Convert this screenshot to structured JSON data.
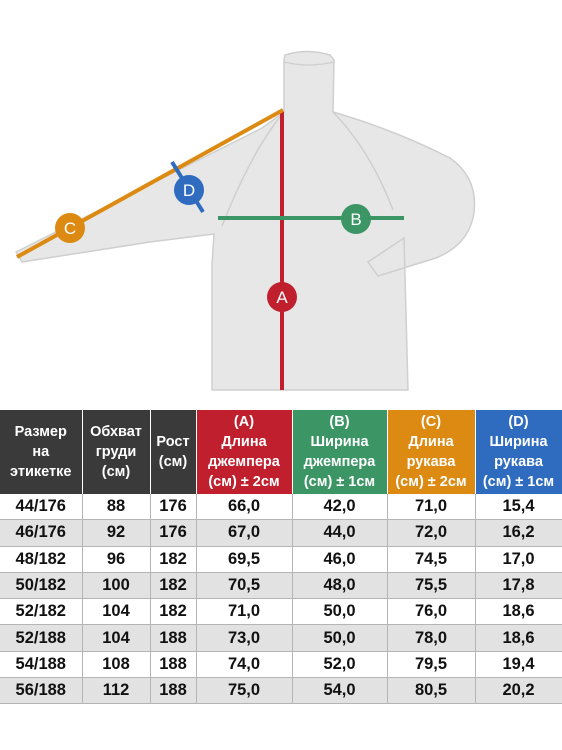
{
  "diagram": {
    "markers": {
      "a": "A",
      "b": "B",
      "c": "C",
      "d": "D"
    },
    "colors": {
      "a": "#c0202e",
      "b": "#3b9564",
      "c": "#dc8a12",
      "d": "#2f6cc0",
      "garment": "#e7e7e7",
      "garment_outline": "#cfcfcf"
    }
  },
  "table": {
    "headers": [
      {
        "lines": [
          "Размер",
          "на",
          "этикетке"
        ],
        "color": "#3a3a3a"
      },
      {
        "lines": [
          "Обхват",
          "груди",
          "(см)"
        ],
        "color": "#3a3a3a"
      },
      {
        "lines": [
          "Рост",
          "(см)"
        ],
        "color": "#3a3a3a"
      },
      {
        "lines": [
          "(A)",
          "Длина",
          "джемпера",
          "(см) ± 2см"
        ],
        "color": "#c0202e"
      },
      {
        "lines": [
          "(B)",
          "Ширина",
          "джемпера",
          "(см) ± 1см"
        ],
        "color": "#3b9564"
      },
      {
        "lines": [
          "(C)",
          "Длина",
          "рукава",
          "(см) ± 2см"
        ],
        "color": "#dc8a12"
      },
      {
        "lines": [
          "(D)",
          "Ширина",
          "рукава",
          "(см) ± 1см"
        ],
        "color": "#2f6cc0"
      }
    ],
    "rows": [
      [
        "44/176",
        "88",
        "176",
        "66,0",
        "42,0",
        "71,0",
        "15,4"
      ],
      [
        "46/176",
        "92",
        "176",
        "67,0",
        "44,0",
        "72,0",
        "16,2"
      ],
      [
        "48/182",
        "96",
        "182",
        "69,5",
        "46,0",
        "74,5",
        "17,0"
      ],
      [
        "50/182",
        "100",
        "182",
        "70,5",
        "48,0",
        "75,5",
        "17,8"
      ],
      [
        "52/182",
        "104",
        "182",
        "71,0",
        "50,0",
        "76,0",
        "18,6"
      ],
      [
        "52/188",
        "104",
        "188",
        "73,0",
        "50,0",
        "78,0",
        "18,6"
      ],
      [
        "54/188",
        "108",
        "188",
        "74,0",
        "52,0",
        "79,5",
        "19,4"
      ],
      [
        "56/188",
        "112",
        "188",
        "75,0",
        "54,0",
        "80,5",
        "20,2"
      ]
    ]
  }
}
